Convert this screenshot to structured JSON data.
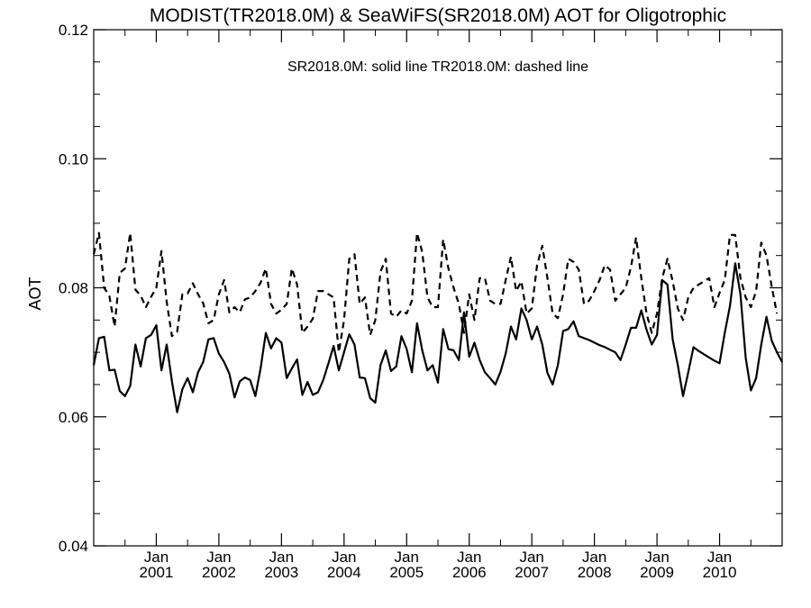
{
  "chart_data": {
    "type": "line",
    "title": "MODIST(TR2018.0M) & SeaWiFS(SR2018.0M)  AOT for Oligotrophic",
    "annotation": "SR2018.0M: solid line   TR2018.0M: dashed line",
    "xlabel": "",
    "ylabel": "AOT",
    "xlim": [
      "2000-01",
      "2010-12"
    ],
    "ylim": [
      0.04,
      0.12
    ],
    "y_ticks": [
      0.04,
      0.06,
      0.08,
      0.1,
      0.12
    ],
    "y_tick_labels": [
      "0.04",
      "0.06",
      "0.08",
      "0.10",
      "0.12"
    ],
    "x_ticks": [
      {
        "date": "2001-01",
        "month_label": "Jan",
        "year_label": "2001"
      },
      {
        "date": "2002-01",
        "month_label": "Jan",
        "year_label": "2002"
      },
      {
        "date": "2003-01",
        "month_label": "Jan",
        "year_label": "2003"
      },
      {
        "date": "2004-01",
        "month_label": "Jan",
        "year_label": "2004"
      },
      {
        "date": "2005-01",
        "month_label": "Jan",
        "year_label": "2005"
      },
      {
        "date": "2006-01",
        "month_label": "Jan",
        "year_label": "2006"
      },
      {
        "date": "2007-01",
        "month_label": "Jan",
        "year_label": "2007"
      },
      {
        "date": "2008-01",
        "month_label": "Jan",
        "year_label": "2008"
      },
      {
        "date": "2009-01",
        "month_label": "Jan",
        "year_label": "2009"
      },
      {
        "date": "2010-01",
        "month_label": "Jan",
        "year_label": "2010"
      }
    ],
    "grid": false,
    "series": [
      {
        "style": "solid",
        "points": [
          [
            "2000-01",
            0.068
          ],
          [
            "2000-02",
            0.0722
          ],
          [
            "2000-03",
            0.0724
          ],
          [
            "2000-04",
            0.0672
          ],
          [
            "2000-05",
            0.0673
          ],
          [
            "2000-06",
            0.064
          ],
          [
            "2000-07",
            0.0632
          ],
          [
            "2000-08",
            0.0648
          ],
          [
            "2000-09",
            0.0712
          ],
          [
            "2000-10",
            0.0678
          ],
          [
            "2000-11",
            0.0722
          ],
          [
            "2000-12",
            0.0727
          ],
          [
            "2001-01",
            0.0742
          ],
          [
            "2001-02",
            0.0672
          ],
          [
            "2001-03",
            0.0712
          ],
          [
            "2001-04",
            0.0655
          ],
          [
            "2001-05",
            0.0607
          ],
          [
            "2001-06",
            0.0643
          ],
          [
            "2001-07",
            0.066
          ],
          [
            "2001-08",
            0.0638
          ],
          [
            "2001-09",
            0.0669
          ],
          [
            "2001-10",
            0.0685
          ],
          [
            "2001-11",
            0.072
          ],
          [
            "2001-12",
            0.0722
          ],
          [
            "2002-01",
            0.0698
          ],
          [
            "2002-02",
            0.0685
          ],
          [
            "2002-03",
            0.0667
          ],
          [
            "2002-04",
            0.063
          ],
          [
            "2002-05",
            0.0655
          ],
          [
            "2002-06",
            0.0661
          ],
          [
            "2002-07",
            0.0657
          ],
          [
            "2002-08",
            0.0632
          ],
          [
            "2002-09",
            0.0675
          ],
          [
            "2002-10",
            0.073
          ],
          [
            "2002-11",
            0.0706
          ],
          [
            "2002-12",
            0.0722
          ],
          [
            "2003-01",
            0.0715
          ],
          [
            "2003-02",
            0.066
          ],
          [
            "2003-03",
            0.0675
          ],
          [
            "2003-04",
            0.0689
          ],
          [
            "2003-05",
            0.0634
          ],
          [
            "2003-06",
            0.0654
          ],
          [
            "2003-07",
            0.0634
          ],
          [
            "2003-08",
            0.0638
          ],
          [
            "2003-09",
            0.0657
          ],
          [
            "2003-10",
            0.0683
          ],
          [
            "2003-11",
            0.071
          ],
          [
            "2003-12",
            0.0672
          ],
          [
            "2004-01",
            0.07
          ],
          [
            "2004-02",
            0.0728
          ],
          [
            "2004-03",
            0.0712
          ],
          [
            "2004-04",
            0.0661
          ],
          [
            "2004-05",
            0.066
          ],
          [
            "2004-06",
            0.0629
          ],
          [
            "2004-07",
            0.0622
          ],
          [
            "2004-08",
            0.068
          ],
          [
            "2004-09",
            0.0703
          ],
          [
            "2004-10",
            0.0671
          ],
          [
            "2004-11",
            0.0678
          ],
          [
            "2004-12",
            0.0725
          ],
          [
            "2005-01",
            0.0705
          ],
          [
            "2005-02",
            0.0669
          ],
          [
            "2005-03",
            0.0745
          ],
          [
            "2005-04",
            0.0703
          ],
          [
            "2005-05",
            0.0672
          ],
          [
            "2005-06",
            0.068
          ],
          [
            "2005-07",
            0.0653
          ],
          [
            "2005-08",
            0.0736
          ],
          [
            "2005-09",
            0.0705
          ],
          [
            "2005-10",
            0.0703
          ],
          [
            "2005-11",
            0.0688
          ],
          [
            "2005-12",
            0.0762
          ],
          [
            "2006-01",
            0.0693
          ],
          [
            "2006-02",
            0.0715
          ],
          [
            "2006-03",
            0.0688
          ],
          [
            "2006-04",
            0.0669
          ],
          [
            "2006-05",
            0.066
          ],
          [
            "2006-06",
            0.065
          ],
          [
            "2006-07",
            0.067
          ],
          [
            "2006-08",
            0.0698
          ],
          [
            "2006-09",
            0.074
          ],
          [
            "2006-10",
            0.072
          ],
          [
            "2006-11",
            0.0768
          ],
          [
            "2006-12",
            0.075
          ],
          [
            "2007-01",
            0.072
          ],
          [
            "2007-02",
            0.074
          ],
          [
            "2007-03",
            0.0712
          ],
          [
            "2007-04",
            0.0668
          ],
          [
            "2007-05",
            0.065
          ],
          [
            "2007-06",
            0.068
          ],
          [
            "2007-07",
            0.0733
          ],
          [
            "2007-08",
            0.0736
          ],
          [
            "2007-09",
            0.0748
          ],
          [
            "2007-10",
            0.0725
          ],
          [
            "2007-11",
            0.0722
          ],
          [
            "2007-12",
            0.0719
          ],
          [
            "2008-01",
            0.0715
          ],
          [
            "2008-02",
            0.0711
          ],
          [
            "2008-03",
            0.0708
          ],
          [
            "2008-04",
            0.0704
          ],
          [
            "2008-05",
            0.07
          ],
          [
            "2008-06",
            0.0688
          ],
          [
            "2008-07",
            0.0712
          ],
          [
            "2008-08",
            0.0738
          ],
          [
            "2008-09",
            0.0738
          ],
          [
            "2008-10",
            0.0765
          ],
          [
            "2008-11",
            0.0735
          ],
          [
            "2008-12",
            0.0712
          ],
          [
            "2009-01",
            0.0727
          ],
          [
            "2009-02",
            0.0812
          ],
          [
            "2009-03",
            0.0805
          ],
          [
            "2009-04",
            0.072
          ],
          [
            "2009-05",
            0.068
          ],
          [
            "2009-06",
            0.0632
          ],
          [
            "2009-07",
            0.0669
          ],
          [
            "2009-08",
            0.0708
          ],
          [
            "2009-09",
            0.0702
          ],
          [
            "2009-10",
            0.0697
          ],
          [
            "2009-11",
            0.0692
          ],
          [
            "2009-12",
            0.0687
          ],
          [
            "2010-01",
            0.0683
          ],
          [
            "2010-02",
            0.073
          ],
          [
            "2010-03",
            0.0772
          ],
          [
            "2010-04",
            0.0838
          ],
          [
            "2010-05",
            0.079
          ],
          [
            "2010-06",
            0.0692
          ],
          [
            "2010-07",
            0.0641
          ],
          [
            "2010-08",
            0.066
          ],
          [
            "2010-09",
            0.0712
          ],
          [
            "2010-10",
            0.0755
          ],
          [
            "2010-11",
            0.0718
          ],
          [
            "2010-12",
            0.07
          ],
          [
            "2011-01",
            0.0685
          ]
        ]
      },
      {
        "style": "dashed",
        "points": [
          [
            "2000-01",
            0.0852
          ],
          [
            "2000-02",
            0.0885
          ],
          [
            "2000-03",
            0.08
          ],
          [
            "2000-04",
            0.0787
          ],
          [
            "2000-05",
            0.074
          ],
          [
            "2000-06",
            0.0823
          ],
          [
            "2000-07",
            0.083
          ],
          [
            "2000-08",
            0.0885
          ],
          [
            "2000-09",
            0.0797
          ],
          [
            "2000-10",
            0.0788
          ],
          [
            "2000-11",
            0.077
          ],
          [
            "2000-12",
            0.0786
          ],
          [
            "2001-01",
            0.08
          ],
          [
            "2001-02",
            0.0857
          ],
          [
            "2001-03",
            0.0778
          ],
          [
            "2001-04",
            0.0725
          ],
          [
            "2001-05",
            0.0732
          ],
          [
            "2001-06",
            0.079
          ],
          [
            "2001-07",
            0.0791
          ],
          [
            "2001-08",
            0.0807
          ],
          [
            "2001-09",
            0.079
          ],
          [
            "2001-10",
            0.0776
          ],
          [
            "2001-11",
            0.0745
          ],
          [
            "2001-12",
            0.075
          ],
          [
            "2002-01",
            0.079
          ],
          [
            "2002-02",
            0.0812
          ],
          [
            "2002-03",
            0.0762
          ],
          [
            "2002-04",
            0.077
          ],
          [
            "2002-05",
            0.0762
          ],
          [
            "2002-06",
            0.0782
          ],
          [
            "2002-07",
            0.0785
          ],
          [
            "2002-08",
            0.0795
          ],
          [
            "2002-09",
            0.0808
          ],
          [
            "2002-10",
            0.083
          ],
          [
            "2002-11",
            0.0775
          ],
          [
            "2002-12",
            0.076
          ],
          [
            "2003-01",
            0.0766
          ],
          [
            "2003-02",
            0.0775
          ],
          [
            "2003-03",
            0.083
          ],
          [
            "2003-04",
            0.0805
          ],
          [
            "2003-05",
            0.073
          ],
          [
            "2003-06",
            0.074
          ],
          [
            "2003-07",
            0.0752
          ],
          [
            "2003-08",
            0.0795
          ],
          [
            "2003-09",
            0.0795
          ],
          [
            "2003-10",
            0.079
          ],
          [
            "2003-11",
            0.0785
          ],
          [
            "2003-12",
            0.07
          ],
          [
            "2004-01",
            0.075
          ],
          [
            "2004-02",
            0.0845
          ],
          [
            "2004-03",
            0.0852
          ],
          [
            "2004-04",
            0.0775
          ],
          [
            "2004-05",
            0.0785
          ],
          [
            "2004-06",
            0.0727
          ],
          [
            "2004-07",
            0.075
          ],
          [
            "2004-08",
            0.0825
          ],
          [
            "2004-09",
            0.0845
          ],
          [
            "2004-10",
            0.076
          ],
          [
            "2004-11",
            0.0755
          ],
          [
            "2004-12",
            0.0765
          ],
          [
            "2005-01",
            0.076
          ],
          [
            "2005-02",
            0.078
          ],
          [
            "2005-03",
            0.0885
          ],
          [
            "2005-04",
            0.0855
          ],
          [
            "2005-05",
            0.0785
          ],
          [
            "2005-06",
            0.077
          ],
          [
            "2005-07",
            0.077
          ],
          [
            "2005-08",
            0.0875
          ],
          [
            "2005-09",
            0.083
          ],
          [
            "2005-10",
            0.08
          ],
          [
            "2005-11",
            0.0775
          ],
          [
            "2005-12",
            0.073
          ],
          [
            "2006-01",
            0.079
          ],
          [
            "2006-02",
            0.075
          ],
          [
            "2006-03",
            0.0815
          ],
          [
            "2006-04",
            0.0815
          ],
          [
            "2006-05",
            0.078
          ],
          [
            "2006-06",
            0.0775
          ],
          [
            "2006-07",
            0.0775
          ],
          [
            "2006-08",
            0.0812
          ],
          [
            "2006-09",
            0.0848
          ],
          [
            "2006-10",
            0.0795
          ],
          [
            "2006-11",
            0.081
          ],
          [
            "2006-12",
            0.076
          ],
          [
            "2007-01",
            0.0768
          ],
          [
            "2007-02",
            0.0835
          ],
          [
            "2007-03",
            0.0865
          ],
          [
            "2007-04",
            0.0815
          ],
          [
            "2007-05",
            0.076
          ],
          [
            "2007-06",
            0.0753
          ],
          [
            "2007-07",
            0.079
          ],
          [
            "2007-08",
            0.0845
          ],
          [
            "2007-09",
            0.084
          ],
          [
            "2007-10",
            0.0828
          ],
          [
            "2007-11",
            0.0775
          ],
          [
            "2007-12",
            0.078
          ],
          [
            "2008-01",
            0.0795
          ],
          [
            "2008-02",
            0.0812
          ],
          [
            "2008-03",
            0.0835
          ],
          [
            "2008-04",
            0.0828
          ],
          [
            "2008-05",
            0.078
          ],
          [
            "2008-06",
            0.079
          ],
          [
            "2008-07",
            0.08
          ],
          [
            "2008-08",
            0.0832
          ],
          [
            "2008-09",
            0.0878
          ],
          [
            "2008-10",
            0.0815
          ],
          [
            "2008-11",
            0.076
          ],
          [
            "2008-12",
            0.073
          ],
          [
            "2009-01",
            0.076
          ],
          [
            "2009-02",
            0.0815
          ],
          [
            "2009-03",
            0.0845
          ],
          [
            "2009-04",
            0.081
          ],
          [
            "2009-05",
            0.0768
          ],
          [
            "2009-06",
            0.075
          ],
          [
            "2009-07",
            0.0785
          ],
          [
            "2009-08",
            0.08
          ],
          [
            "2009-09",
            0.0805
          ],
          [
            "2009-10",
            0.081
          ],
          [
            "2009-11",
            0.0815
          ],
          [
            "2009-12",
            0.077
          ],
          [
            "2010-01",
            0.0792
          ],
          [
            "2010-02",
            0.0812
          ],
          [
            "2010-03",
            0.0882
          ],
          [
            "2010-04",
            0.0882
          ],
          [
            "2010-05",
            0.0815
          ],
          [
            "2010-06",
            0.0785
          ],
          [
            "2010-07",
            0.077
          ],
          [
            "2010-08",
            0.0795
          ],
          [
            "2010-09",
            0.087
          ],
          [
            "2010-10",
            0.085
          ],
          [
            "2010-11",
            0.0802
          ],
          [
            "2010-12",
            0.076
          ]
        ]
      }
    ]
  }
}
